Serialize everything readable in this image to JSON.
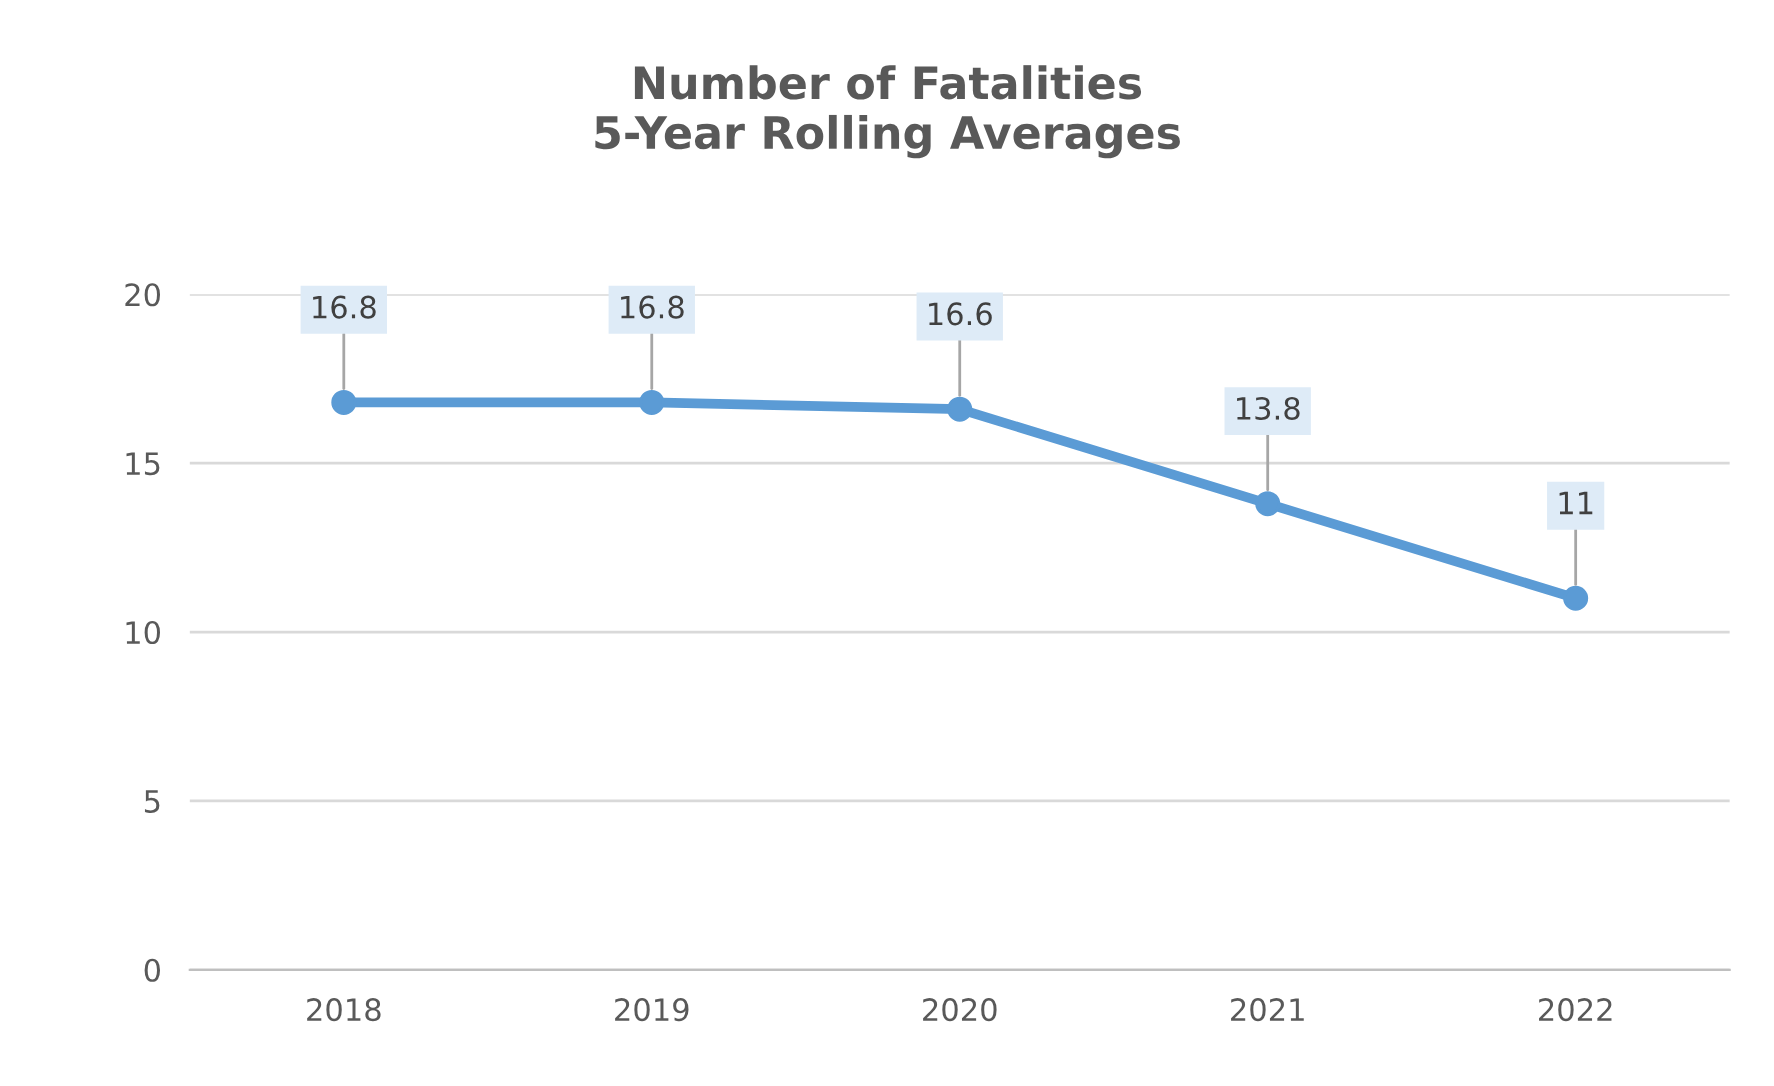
{
  "chart_data": {
    "type": "line",
    "title": "Number of Fatalities\n5-Year Rolling Averages",
    "categories": [
      "2018",
      "2019",
      "2020",
      "2021",
      "2022"
    ],
    "series": [
      {
        "color": "#5b9bd5",
        "values": [
          16.8,
          16.8,
          16.6,
          13.8,
          11
        ]
      }
    ],
    "ylim": [
      0,
      20
    ],
    "yticks": [
      0,
      5,
      10,
      15,
      20
    ],
    "grid": "y",
    "marker": "circle",
    "line_style": "solid",
    "data_labels": true,
    "legend": false
  }
}
